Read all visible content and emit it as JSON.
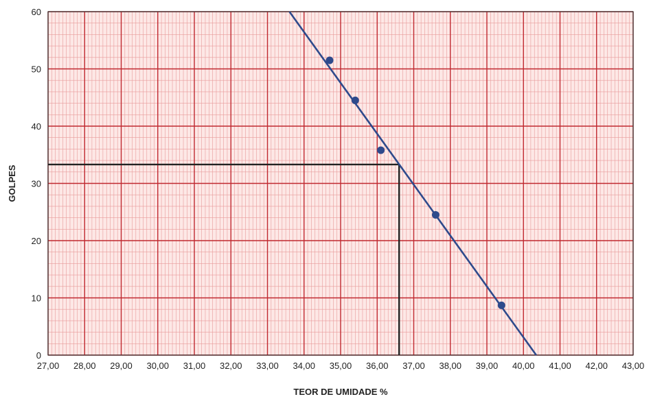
{
  "chart_data": {
    "type": "scatter",
    "title": "",
    "xlabel": "TEOR DE UMIDADE %",
    "ylabel": "GOLPES",
    "xlim": [
      27,
      43
    ],
    "ylim": [
      0,
      60
    ],
    "x_ticks": [
      "27,00",
      "28,00",
      "29,00",
      "30,00",
      "31,00",
      "32,00",
      "33,00",
      "34,00",
      "35,00",
      "36,00",
      "37,00",
      "38,00",
      "39,00",
      "40,00",
      "41,00",
      "42,00",
      "43,00"
    ],
    "y_ticks": [
      "0",
      "10",
      "20",
      "30",
      "40",
      "50",
      "60"
    ],
    "grid": true,
    "series": [
      {
        "type": "scatter",
        "color": "#2e4a8c",
        "points": [
          {
            "x": 34.7,
            "y": 51.5
          },
          {
            "x": 35.4,
            "y": 44.5
          },
          {
            "x": 36.1,
            "y": 35.8
          },
          {
            "x": 37.6,
            "y": 24.5
          },
          {
            "x": 39.4,
            "y": 8.7
          }
        ]
      },
      {
        "type": "line",
        "color": "#2e4a8c",
        "points": [
          {
            "x": 33.6,
            "y": 60
          },
          {
            "x": 40.35,
            "y": 0
          }
        ]
      }
    ],
    "reference_lines": [
      {
        "type": "horizontal",
        "y": 33.3,
        "x_from": 27,
        "x_to": 36.6,
        "color": "#222222"
      },
      {
        "type": "vertical",
        "x": 36.6,
        "y_from": 0,
        "y_to": 33.3,
        "color": "#222222"
      }
    ],
    "colors": {
      "plot_background": "#fde8e6",
      "grid_minor": "#e89a9a",
      "grid_major": "#c0282f"
    }
  }
}
